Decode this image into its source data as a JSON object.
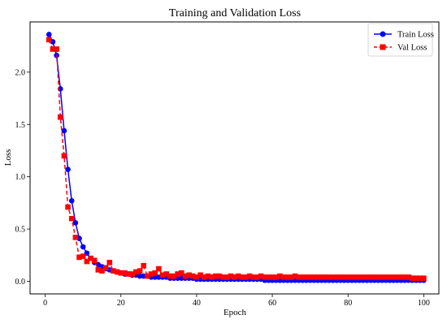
{
  "chart_data": {
    "type": "line",
    "title": "Training and Validation Loss",
    "xlabel": "Epoch",
    "ylabel": "Loss",
    "xlim": [
      -4,
      104
    ],
    "ylim": [
      -0.12,
      2.48
    ],
    "xticks": [
      0,
      20,
      40,
      60,
      80,
      100
    ],
    "yticks": [
      0.0,
      0.5,
      1.0,
      1.5,
      2.0
    ],
    "grid": false,
    "legend_position": "top-right",
    "x": [
      1,
      2,
      3,
      4,
      5,
      6,
      7,
      8,
      9,
      10,
      11,
      12,
      13,
      14,
      15,
      16,
      17,
      18,
      19,
      20,
      21,
      22,
      23,
      24,
      25,
      26,
      27,
      28,
      29,
      30,
      31,
      32,
      33,
      34,
      35,
      36,
      37,
      38,
      39,
      40,
      41,
      42,
      43,
      44,
      45,
      46,
      47,
      48,
      49,
      50,
      51,
      52,
      53,
      54,
      55,
      56,
      57,
      58,
      59,
      60,
      61,
      62,
      63,
      64,
      65,
      66,
      67,
      68,
      69,
      70,
      71,
      72,
      73,
      74,
      75,
      76,
      77,
      78,
      79,
      80,
      81,
      82,
      83,
      84,
      85,
      86,
      87,
      88,
      89,
      90,
      91,
      92,
      93,
      94,
      95,
      96,
      97,
      98,
      99,
      100
    ],
    "series": [
      {
        "name": "Train Loss",
        "color": "#0000ff",
        "marker": "circle",
        "linestyle": "solid",
        "values": [
          2.36,
          2.29,
          2.16,
          1.84,
          1.44,
          1.07,
          0.77,
          0.56,
          0.41,
          0.33,
          0.27,
          0.22,
          0.18,
          0.16,
          0.14,
          0.12,
          0.11,
          0.1,
          0.09,
          0.08,
          0.07,
          0.07,
          0.06,
          0.06,
          0.05,
          0.05,
          0.05,
          0.04,
          0.04,
          0.04,
          0.04,
          0.04,
          0.03,
          0.03,
          0.03,
          0.03,
          0.03,
          0.03,
          0.03,
          0.02,
          0.02,
          0.02,
          0.02,
          0.02,
          0.02,
          0.02,
          0.02,
          0.02,
          0.02,
          0.02,
          0.02,
          0.02,
          0.02,
          0.02,
          0.02,
          0.02,
          0.02,
          0.01,
          0.01,
          0.01,
          0.01,
          0.01,
          0.01,
          0.01,
          0.01,
          0.01,
          0.01,
          0.01,
          0.01,
          0.01,
          0.01,
          0.01,
          0.01,
          0.01,
          0.01,
          0.01,
          0.01,
          0.01,
          0.01,
          0.01,
          0.01,
          0.01,
          0.01,
          0.01,
          0.01,
          0.01,
          0.01,
          0.01,
          0.01,
          0.01,
          0.01,
          0.01,
          0.01,
          0.01,
          0.01,
          0.01,
          0.01,
          0.01,
          0.01,
          0.01
        ]
      },
      {
        "name": "Val Loss",
        "color": "#ff0000",
        "marker": "square",
        "linestyle": "dashed",
        "values": [
          2.31,
          2.22,
          2.22,
          1.57,
          1.2,
          0.71,
          0.6,
          0.42,
          0.23,
          0.24,
          0.19,
          0.22,
          0.2,
          0.11,
          0.1,
          0.13,
          0.18,
          0.1,
          0.09,
          0.08,
          0.08,
          0.07,
          0.07,
          0.09,
          0.1,
          0.15,
          0.05,
          0.07,
          0.08,
          0.12,
          0.06,
          0.07,
          0.05,
          0.05,
          0.07,
          0.08,
          0.05,
          0.06,
          0.05,
          0.04,
          0.06,
          0.04,
          0.05,
          0.04,
          0.05,
          0.05,
          0.04,
          0.04,
          0.05,
          0.04,
          0.05,
          0.04,
          0.04,
          0.05,
          0.04,
          0.04,
          0.05,
          0.04,
          0.04,
          0.04,
          0.04,
          0.05,
          0.04,
          0.04,
          0.04,
          0.05,
          0.04,
          0.04,
          0.04,
          0.04,
          0.04,
          0.04,
          0.04,
          0.04,
          0.04,
          0.04,
          0.04,
          0.04,
          0.04,
          0.04,
          0.04,
          0.04,
          0.04,
          0.04,
          0.04,
          0.04,
          0.04,
          0.04,
          0.04,
          0.04,
          0.04,
          0.04,
          0.04,
          0.04,
          0.04,
          0.04,
          0.03,
          0.03,
          0.03,
          0.03
        ]
      }
    ]
  }
}
